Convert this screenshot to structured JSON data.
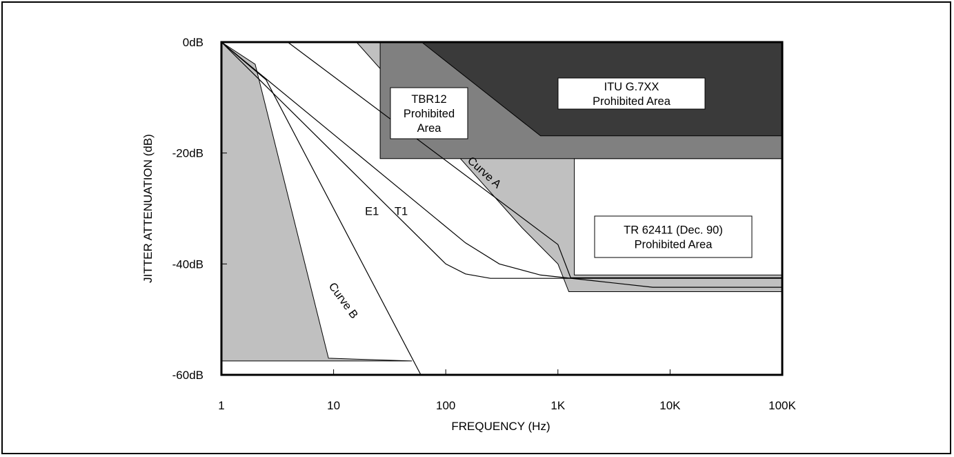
{
  "chart_data": {
    "type": "line",
    "xlabel": "FREQUENCY (Hz)",
    "ylabel": "JITTER ATTENUATION (dB)",
    "x_scale": "log",
    "xlim": [
      1,
      100000
    ],
    "ylim": [
      -60,
      0
    ],
    "x_ticks": [
      {
        "value": 1,
        "label": "1"
      },
      {
        "value": 10,
        "label": "10"
      },
      {
        "value": 100,
        "label": "100"
      },
      {
        "value": 1000,
        "label": "1K"
      },
      {
        "value": 10000,
        "label": "10K"
      },
      {
        "value": 100000,
        "label": "100K"
      }
    ],
    "y_ticks": [
      {
        "value": 0,
        "label": "0dB"
      },
      {
        "value": -20,
        "label": "-20dB"
      },
      {
        "value": -40,
        "label": "-40dB"
      },
      {
        "value": -60,
        "label": "-60dB"
      }
    ],
    "regions": [
      {
        "label_lines": [
          "TR 62411 (Dec. 90)",
          "Prohibited Area"
        ],
        "color": "#c0c0c0",
        "points": [
          [
            16,
            0
          ],
          [
            100000,
            0
          ],
          [
            100000,
            -21
          ],
          [
            1400,
            -21
          ],
          [
            1400,
            -42
          ],
          [
            100000,
            -42
          ],
          [
            100000,
            -45
          ],
          [
            1250,
            -45
          ],
          [
            1000,
            -40
          ],
          [
            480,
            -33.5
          ],
          [
            16,
            0
          ]
        ]
      },
      {
        "label_lines": [
          "TBR12",
          "Prohibited",
          "Area"
        ],
        "color": "#808080",
        "points": [
          [
            26,
            0
          ],
          [
            100000,
            0
          ],
          [
            100000,
            -21
          ],
          [
            26,
            -21
          ]
        ]
      },
      {
        "label_lines": [
          "ITU G.7XX",
          "Prohibited Area"
        ],
        "color": "#3a3a3a",
        "points": [
          [
            61,
            0
          ],
          [
            100000,
            0
          ],
          [
            100000,
            -16.9
          ],
          [
            1300,
            -16.9
          ],
          [
            700,
            -16.9
          ],
          [
            61,
            0
          ]
        ]
      },
      {
        "label_lines": [],
        "color": "#c0c0c0",
        "points": [
          [
            1,
            0
          ],
          [
            2,
            -4
          ],
          [
            9,
            -57
          ],
          [
            50,
            -57.5
          ],
          [
            1,
            -57.5
          ]
        ]
      }
    ],
    "series": [
      {
        "name": "Curve A",
        "points": [
          [
            3.9,
            0
          ],
          [
            1000,
            -36.5
          ],
          [
            1300,
            -42.5
          ],
          [
            100000,
            -42.5
          ]
        ]
      },
      {
        "name": "T1",
        "points": [
          [
            1,
            0
          ],
          [
            150,
            -36.2
          ],
          [
            300,
            -40
          ],
          [
            700,
            -42
          ],
          [
            2000,
            -43
          ],
          [
            7000,
            -44.2
          ],
          [
            100000,
            -44.2
          ]
        ]
      },
      {
        "name": "E1",
        "points": [
          [
            1,
            0
          ],
          [
            100,
            -40
          ],
          [
            150,
            -41.8
          ],
          [
            250,
            -42.6
          ],
          [
            300,
            -42.6
          ],
          [
            100000,
            -42.6
          ]
        ]
      },
      {
        "name": "Curve B",
        "points": [
          [
            1,
            0
          ],
          [
            2.5,
            -6.8
          ],
          [
            60,
            -60
          ]
        ]
      }
    ],
    "annotations": [
      {
        "text": "Curve A",
        "x": 210,
        "y": -24,
        "angle": 42
      },
      {
        "text": "E1",
        "x": 22,
        "y": -31.2,
        "angle": 0
      },
      {
        "text": "T1",
        "x": 40,
        "y": -31.2,
        "angle": 0
      },
      {
        "text": "Curve B",
        "x": 11.5,
        "y": -47,
        "angle": 54
      }
    ],
    "grid": false,
    "legend": "none"
  }
}
